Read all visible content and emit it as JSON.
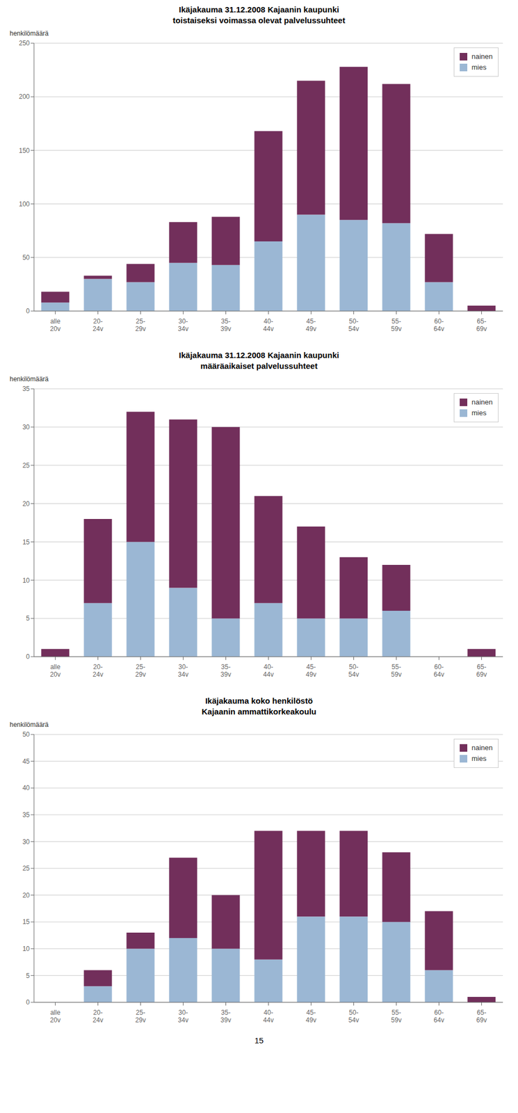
{
  "chart_data": [
    {
      "type": "bar",
      "title": "Ikäjakauma 31.12.2008 Kajaanin kaupunki",
      "subtitle": "toistaiseksi voimassa olevat palvelussuhteet",
      "ylabel": "henkilömäärä",
      "categories": [
        "alle\n20v",
        "20-\n24v",
        "25-\n29v",
        "30-\n34v",
        "35-\n39v",
        "40-\n44v",
        "45-\n49v",
        "50-\n54v",
        "55-\n59v",
        "60-\n64v",
        "65-\n69v"
      ],
      "series": [
        {
          "name": "mies",
          "color": "#9BB7D4",
          "values": [
            8,
            30,
            27,
            45,
            43,
            65,
            90,
            85,
            82,
            27,
            0
          ]
        },
        {
          "name": "nainen",
          "color": "#722F5B",
          "values": [
            10,
            3,
            17,
            38,
            45,
            103,
            125,
            143,
            130,
            45,
            5
          ]
        }
      ],
      "stacked": true,
      "ylim": [
        0,
        250
      ],
      "yticks": [
        0,
        50,
        100,
        150,
        200,
        250
      ],
      "grid": true,
      "legend": "upper right"
    },
    {
      "type": "bar",
      "title": "Ikäjakauma 31.12.2008 Kajaanin kaupunki",
      "subtitle": "määräaikaiset palvelussuhteet",
      "ylabel": "henkilömäärä",
      "categories": [
        "alle\n20v",
        "20-\n24v",
        "25-\n29v",
        "30-\n34v",
        "35-\n39v",
        "40-\n44v",
        "45-\n49v",
        "50-\n54v",
        "55-\n59v",
        "60-\n64v",
        "65-\n69v"
      ],
      "series": [
        {
          "name": "mies",
          "color": "#9BB7D4",
          "values": [
            0,
            7,
            15,
            9,
            5,
            7,
            5,
            5,
            6,
            0,
            0
          ]
        },
        {
          "name": "nainen",
          "color": "#722F5B",
          "values": [
            1,
            11,
            17,
            22,
            25,
            14,
            12,
            8,
            6,
            0,
            1
          ]
        }
      ],
      "stacked": true,
      "ylim": [
        0,
        35
      ],
      "yticks": [
        0,
        5,
        10,
        15,
        20,
        25,
        30,
        35
      ],
      "grid": true,
      "legend": "upper right"
    },
    {
      "type": "bar",
      "title": "Ikäjakauma koko henkilöstö",
      "subtitle": "Kajaanin ammattikorkeakoulu",
      "ylabel": "henkilömäärä",
      "categories": [
        "alle\n20v",
        "20-\n24v",
        "25-\n29v",
        "30-\n34v",
        "35-\n39v",
        "40-\n44v",
        "45-\n49v",
        "50-\n54v",
        "55-\n59v",
        "60-\n64v",
        "65-\n69v"
      ],
      "series": [
        {
          "name": "mies",
          "color": "#9BB7D4",
          "values": [
            0,
            3,
            10,
            12,
            10,
            8,
            16,
            16,
            15,
            6,
            0
          ]
        },
        {
          "name": "nainen",
          "color": "#722F5B",
          "values": [
            0,
            3,
            3,
            15,
            10,
            24,
            16,
            16,
            13,
            11,
            1
          ]
        }
      ],
      "stacked": true,
      "ylim": [
        0,
        50
      ],
      "yticks": [
        0,
        5,
        10,
        15,
        20,
        25,
        30,
        35,
        40,
        45,
        50
      ],
      "grid": true,
      "legend": "upper right",
      "annotations": [
        "15"
      ]
    }
  ]
}
